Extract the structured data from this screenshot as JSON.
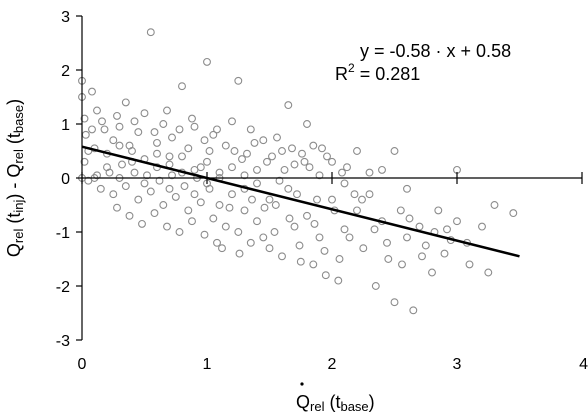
{
  "chart_data": {
    "type": "scatter",
    "title": "",
    "xlabel": {
      "main": "Q",
      "sub": "rel",
      "rest": " (t",
      "sub2": "base",
      "close": ")"
    },
    "ylabel": {
      "a_main": "Q",
      "a_sub": "rel",
      "a_rest": " (t",
      "a_sub2": "inj",
      "a_close": ")",
      "dash": " - ",
      "b_main": "Q",
      "b_sub": "rel",
      "b_rest": " (t",
      "b_sub2": "base",
      "b_close": ")"
    },
    "xlim": [
      0,
      4
    ],
    "ylim": [
      -3,
      3
    ],
    "xticks": [
      "0",
      "1",
      "2",
      "3",
      "4"
    ],
    "yticks": [
      "3",
      "2",
      "1",
      "0",
      "-1",
      "-2",
      "-3"
    ],
    "grid": false,
    "equation": "y = -0.58 · x + 0.58",
    "r2_label": "R",
    "r2_exp": "2",
    "r2_value": " = 0.281",
    "regression": {
      "slope": -0.58,
      "intercept": 0.58,
      "x_start": 0,
      "x_end": 3.5
    },
    "marker_color": "#8c8c8c",
    "line_color": "#000000",
    "series": [
      {
        "values": [
          [
            0.0,
            1.8
          ],
          [
            0.0,
            1.5
          ],
          [
            0.02,
            1.1
          ],
          [
            0.03,
            0.8
          ],
          [
            0.05,
            0.5
          ],
          [
            0.0,
            0.0
          ],
          [
            0.05,
            -0.05
          ],
          [
            0.1,
            0.0
          ],
          [
            0.02,
            0.3
          ],
          [
            0.08,
            1.6
          ],
          [
            0.12,
            1.25
          ],
          [
            0.18,
            0.9
          ],
          [
            0.25,
            0.7
          ],
          [
            0.3,
            0.95
          ],
          [
            0.35,
            1.4
          ],
          [
            0.38,
            0.6
          ],
          [
            0.45,
            0.85
          ],
          [
            0.5,
            1.2
          ],
          [
            0.55,
            2.7
          ],
          [
            0.6,
            0.65
          ],
          [
            0.65,
            1.0
          ],
          [
            0.7,
            0.4
          ],
          [
            0.72,
            0.75
          ],
          [
            0.8,
            1.7
          ],
          [
            0.85,
            0.55
          ],
          [
            0.9,
            0.95
          ],
          [
            0.95,
            0.2
          ],
          [
            1.0,
            2.15
          ],
          [
            1.02,
            0.5
          ],
          [
            1.05,
            0.8
          ],
          [
            1.1,
            0.1
          ],
          [
            1.15,
            0.6
          ],
          [
            1.2,
            1.05
          ],
          [
            1.25,
            1.8
          ],
          [
            1.28,
            0.35
          ],
          [
            1.3,
            -0.2
          ],
          [
            1.35,
            0.9
          ],
          [
            1.4,
            0.15
          ],
          [
            1.45,
            0.7
          ],
          [
            1.5,
            -0.4
          ],
          [
            0.2,
            0.2
          ],
          [
            0.3,
            0.0
          ],
          [
            0.4,
            0.3
          ],
          [
            0.5,
            -0.1
          ],
          [
            0.6,
            0.2
          ],
          [
            0.7,
            -0.2
          ],
          [
            0.8,
            0.1
          ],
          [
            0.9,
            -0.3
          ],
          [
            1.0,
            -0.1
          ],
          [
            1.1,
            -0.5
          ],
          [
            0.15,
            -0.2
          ],
          [
            0.25,
            -0.3
          ],
          [
            0.35,
            -0.15
          ],
          [
            0.45,
            -0.4
          ],
          [
            0.55,
            -0.25
          ],
          [
            0.65,
            -0.5
          ],
          [
            0.75,
            -0.35
          ],
          [
            0.85,
            -0.6
          ],
          [
            0.95,
            -0.45
          ],
          [
            1.05,
            -0.75
          ],
          [
            1.15,
            -0.9
          ],
          [
            1.2,
            -0.3
          ],
          [
            1.25,
            -1.0
          ],
          [
            1.3,
            -0.6
          ],
          [
            1.35,
            -1.2
          ],
          [
            1.4,
            -0.8
          ],
          [
            1.45,
            -1.1
          ],
          [
            1.5,
            -1.3
          ],
          [
            1.55,
            -0.5
          ],
          [
            1.6,
            -1.45
          ],
          [
            1.65,
            -0.2
          ],
          [
            1.7,
            -0.9
          ],
          [
            1.75,
            -1.55
          ],
          [
            1.8,
            -0.7
          ],
          [
            1.85,
            -1.6
          ],
          [
            1.9,
            -1.1
          ],
          [
            1.95,
            -1.8
          ],
          [
            2.0,
            -0.4
          ],
          [
            2.05,
            -1.9
          ],
          [
            2.1,
            -0.95
          ],
          [
            1.6,
            0.5
          ],
          [
            1.65,
            1.35
          ],
          [
            1.7,
            0.25
          ],
          [
            1.8,
            1.0
          ],
          [
            1.85,
            0.6
          ],
          [
            1.9,
            0.05
          ],
          [
            2.0,
            0.3
          ],
          [
            2.1,
            -0.1
          ],
          [
            2.2,
            0.5
          ],
          [
            2.3,
            0.1
          ],
          [
            2.2,
            -0.6
          ],
          [
            2.25,
            -1.3
          ],
          [
            2.3,
            -0.3
          ],
          [
            2.35,
            -2.0
          ],
          [
            2.4,
            -0.8
          ],
          [
            2.45,
            -1.5
          ],
          [
            2.5,
            -2.3
          ],
          [
            2.55,
            -0.6
          ],
          [
            2.6,
            -1.1
          ],
          [
            2.65,
            -2.45
          ],
          [
            2.7,
            -0.9
          ],
          [
            2.75,
            -1.25
          ],
          [
            2.8,
            -1.75
          ],
          [
            2.85,
            -0.6
          ],
          [
            2.9,
            -1.4
          ],
          [
            2.95,
            -1.15
          ],
          [
            3.0,
            -0.8
          ],
          [
            3.0,
            0.15
          ],
          [
            3.1,
            -1.6
          ],
          [
            3.2,
            -0.9
          ],
          [
            3.25,
            -1.75
          ],
          [
            3.3,
            -0.5
          ],
          [
            3.45,
            -0.65
          ],
          [
            2.4,
            0.15
          ],
          [
            2.5,
            0.5
          ],
          [
            2.6,
            -0.2
          ],
          [
            0.1,
            0.55
          ],
          [
            0.2,
            0.45
          ],
          [
            0.3,
            0.6
          ],
          [
            0.4,
            0.5
          ],
          [
            0.5,
            0.35
          ],
          [
            0.6,
            0.45
          ],
          [
            0.7,
            0.25
          ],
          [
            0.8,
            0.4
          ],
          [
            0.9,
            0.15
          ],
          [
            1.0,
            0.3
          ],
          [
            1.1,
            0.0
          ],
          [
            1.2,
            0.2
          ],
          [
            1.3,
            0.05
          ],
          [
            1.4,
            -0.1
          ],
          [
            0.12,
            0.05
          ],
          [
            0.22,
            0.1
          ],
          [
            0.32,
            0.25
          ],
          [
            0.42,
            0.1
          ],
          [
            0.52,
            0.05
          ],
          [
            0.62,
            -0.05
          ],
          [
            0.72,
            0.05
          ],
          [
            0.82,
            -0.15
          ],
          [
            0.92,
            0.0
          ],
          [
            1.02,
            -0.2
          ],
          [
            0.08,
            0.9
          ],
          [
            0.16,
            1.05
          ],
          [
            0.28,
            1.15
          ],
          [
            0.42,
            1.05
          ],
          [
            0.58,
            0.85
          ],
          [
            0.68,
            1.25
          ],
          [
            0.78,
            0.9
          ],
          [
            0.88,
            1.1
          ],
          [
            0.98,
            0.7
          ],
          [
            1.08,
            0.9
          ],
          [
            0.28,
            -0.55
          ],
          [
            0.38,
            -0.7
          ],
          [
            0.48,
            -0.85
          ],
          [
            0.58,
            -0.65
          ],
          [
            0.68,
            -0.9
          ],
          [
            0.78,
            -1.0
          ],
          [
            0.88,
            -0.8
          ],
          [
            0.98,
            -1.05
          ],
          [
            1.08,
            -1.2
          ],
          [
            1.18,
            -0.55
          ],
          [
            1.52,
            0.4
          ],
          [
            1.58,
            -0.05
          ],
          [
            1.62,
            0.15
          ],
          [
            1.72,
            -0.3
          ],
          [
            1.78,
            0.3
          ],
          [
            1.88,
            -0.4
          ],
          [
            1.92,
            0.55
          ],
          [
            2.02,
            -0.6
          ],
          [
            2.12,
            0.2
          ],
          [
            2.18,
            -0.3
          ],
          [
            1.22,
            0.5
          ],
          [
            1.32,
            0.45
          ],
          [
            1.38,
            0.65
          ],
          [
            1.48,
            0.3
          ],
          [
            1.56,
            0.75
          ],
          [
            1.68,
            0.55
          ],
          [
            1.76,
            0.45
          ],
          [
            1.82,
            0.2
          ],
          [
            1.96,
            0.4
          ],
          [
            2.08,
            0.1
          ],
          [
            1.12,
            -1.3
          ],
          [
            1.26,
            -1.4
          ],
          [
            1.36,
            -0.4
          ],
          [
            1.46,
            -0.55
          ],
          [
            1.54,
            -1.0
          ],
          [
            1.66,
            -0.75
          ],
          [
            1.74,
            -1.25
          ],
          [
            1.86,
            -0.85
          ],
          [
            1.94,
            -1.35
          ],
          [
            2.06,
            -1.5
          ],
          [
            2.14,
            -1.1
          ],
          [
            2.24,
            -0.4
          ],
          [
            2.34,
            -0.95
          ],
          [
            2.44,
            -1.2
          ],
          [
            2.56,
            -1.6
          ],
          [
            2.62,
            -0.75
          ],
          [
            2.72,
            -1.45
          ],
          [
            2.82,
            -1.0
          ],
          [
            2.92,
            -0.95
          ],
          [
            3.08,
            -1.2
          ]
        ]
      }
    ]
  }
}
